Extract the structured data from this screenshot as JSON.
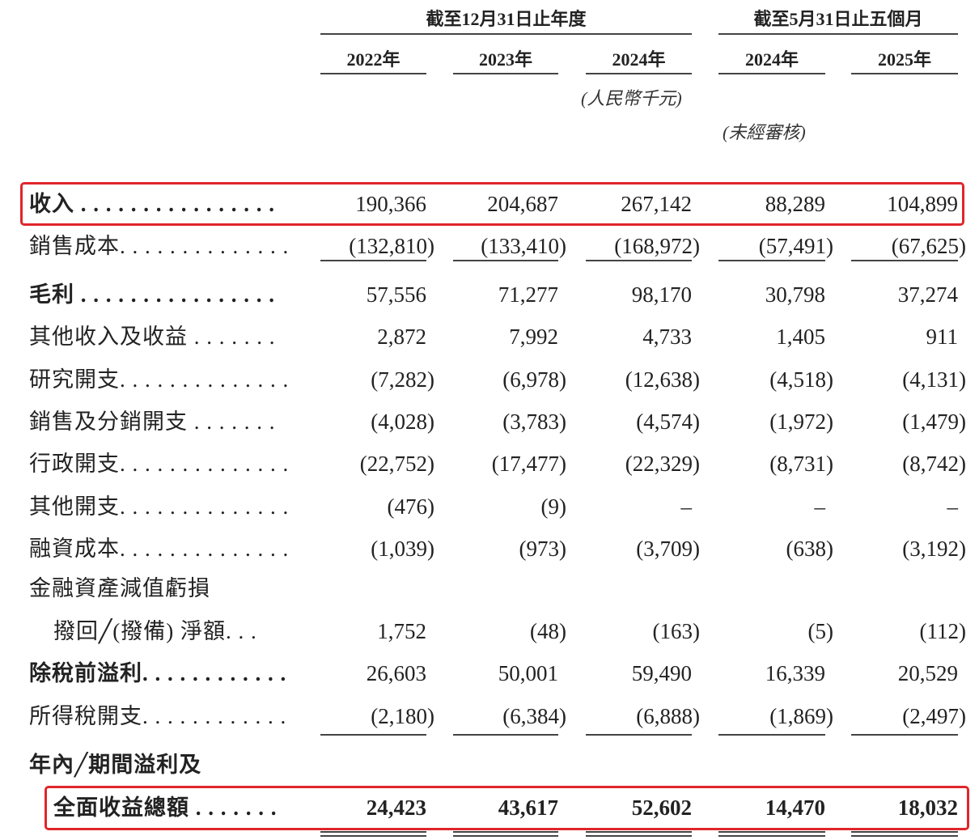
{
  "header": {
    "group_annual": "截至12月31日止年度",
    "group_period": "截至5月31日止五個月",
    "years": [
      "2022年",
      "2023年",
      "2024年",
      "2024年",
      "2025年"
    ],
    "currency_note": "(人民幣千元)",
    "unaudited_note": "(未經審核)"
  },
  "highlight_color": "#e0262a",
  "rows": [
    {
      "label": "收入 . . . . . . . . . . . . . . . .",
      "bold": true,
      "values": [
        "190,366",
        "204,687",
        "267,142",
        "88,289",
        "104,899"
      ],
      "highlighted": true
    },
    {
      "label": "銷售成本. . . . . . . . . . . . . .",
      "values": [
        "(132,810)",
        "(133,410)",
        "(168,972)",
        "(57,491)",
        "(67,625)"
      ]
    },
    {
      "label": "毛利 . . . . . . . . . . . . . . . .",
      "bold": true,
      "values": [
        "57,556",
        "71,277",
        "98,170",
        "30,798",
        "37,274"
      ]
    },
    {
      "label": "其他收入及收益 . . . . . . .",
      "values": [
        "2,872",
        "7,992",
        "4,733",
        "1,405",
        "911"
      ]
    },
    {
      "label": "研究開支. . . . . . . . . . . . . .",
      "values": [
        "(7,282)",
        "(6,978)",
        "(12,638)",
        "(4,518)",
        "(4,131)"
      ]
    },
    {
      "label": "銷售及分銷開支 . . . . . . .",
      "values": [
        "(4,028)",
        "(3,783)",
        "(4,574)",
        "(1,972)",
        "(1,479)"
      ]
    },
    {
      "label": "行政開支. . . . . . . . . . . . . .",
      "values": [
        "(22,752)",
        "(17,477)",
        "(22,329)",
        "(8,731)",
        "(8,742)"
      ]
    },
    {
      "label": "其他開支. . . . . . . . . . . . . .",
      "values": [
        "(476)",
        "(9)",
        "–",
        "–",
        "–"
      ]
    },
    {
      "label": "融資成本. . . . . . . . . . . . . .",
      "values": [
        "(1,039)",
        "(973)",
        "(3,709)",
        "(638)",
        "(3,192)"
      ]
    },
    {
      "label": "金融資產減值虧損",
      "values": []
    },
    {
      "label": "撥回╱(撥備) 淨額. . .",
      "indent": true,
      "values": [
        "1,752",
        "(48)",
        "(163)",
        "(5)",
        "(112)"
      ]
    },
    {
      "label": "除稅前溢利. . . . . . . . . . . .",
      "bold": true,
      "values": [
        "26,603",
        "50,001",
        "59,490",
        "16,339",
        "20,529"
      ]
    },
    {
      "label": "所得稅開支. . . . . . . . . . . .",
      "values": [
        "(2,180)",
        "(6,384)",
        "(6,888)",
        "(1,869)",
        "(2,497)"
      ]
    },
    {
      "label": "年內╱期間溢利及",
      "bold": true,
      "values": []
    },
    {
      "label": "全面收益總額 . . . . . . .",
      "bold": true,
      "indent": true,
      "values": [
        "24,423",
        "43,617",
        "52,602",
        "14,470",
        "18,032"
      ],
      "highlighted": true
    }
  ]
}
